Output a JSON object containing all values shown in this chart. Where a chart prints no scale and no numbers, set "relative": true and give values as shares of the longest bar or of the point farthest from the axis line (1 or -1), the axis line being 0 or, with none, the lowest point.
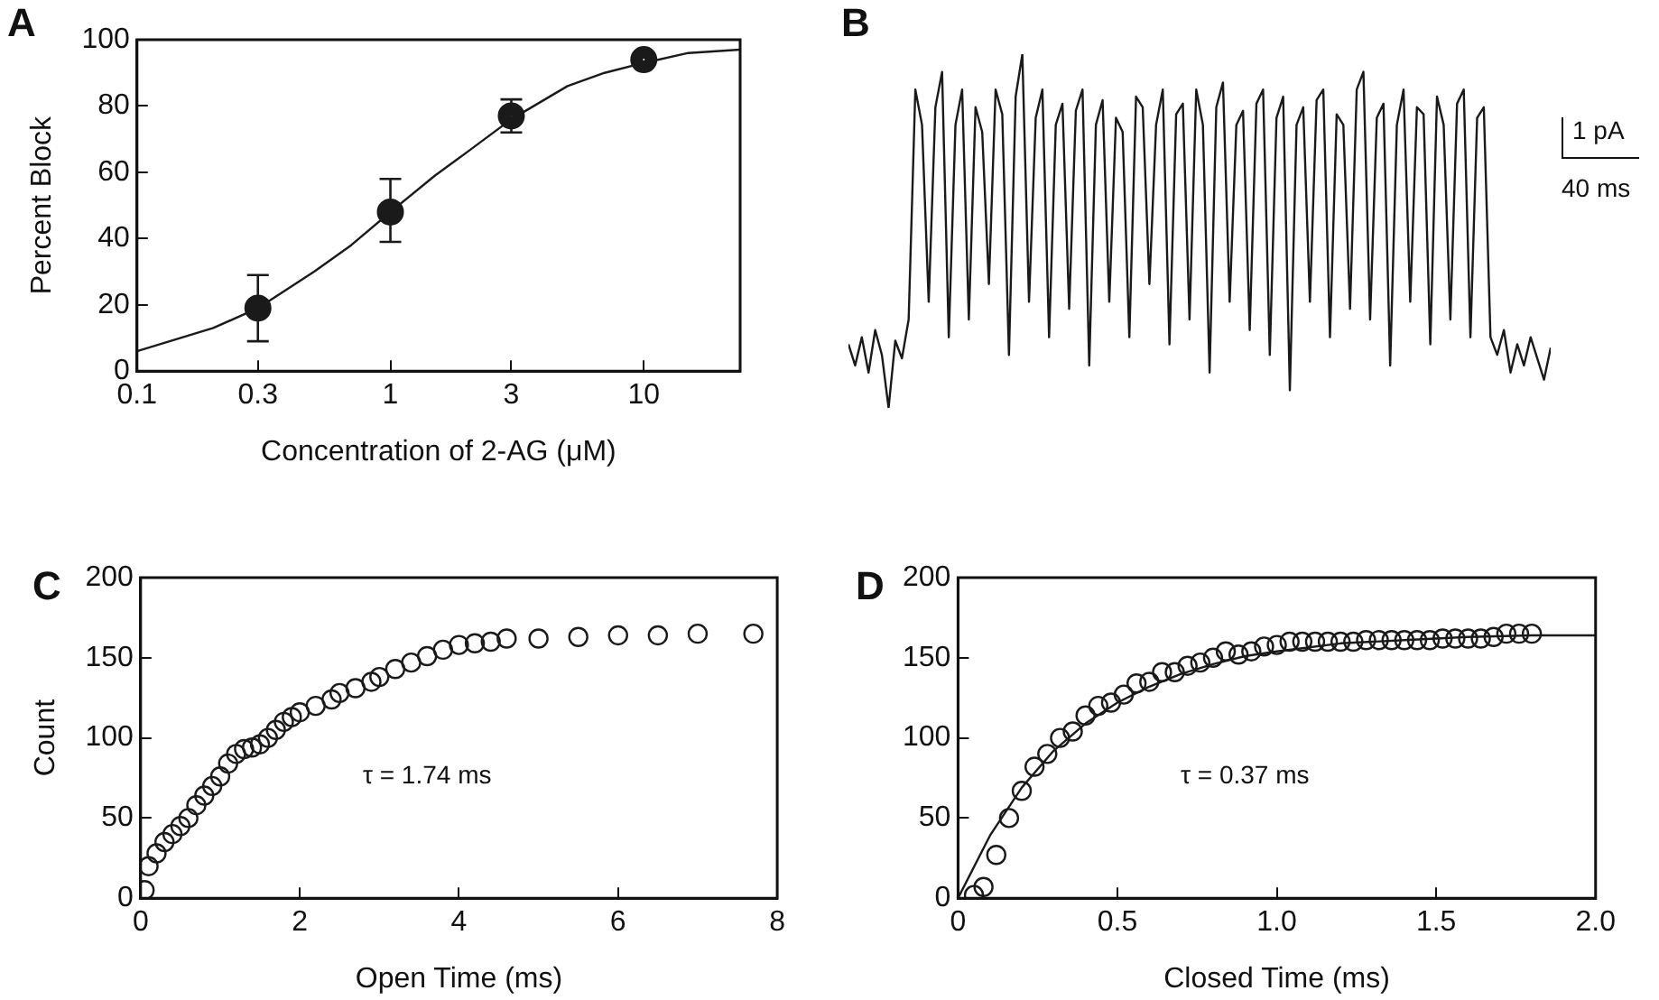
{
  "chart_data": [
    {
      "type": "scatter",
      "title": "A",
      "xlabel": "Concentration of 2-AG (μM)",
      "ylabel": "Percent Block",
      "log": "x",
      "xlim": [
        0.1,
        24
      ],
      "xticks": [
        0.1,
        0.3,
        1,
        3,
        10
      ],
      "ylim": [
        0,
        100
      ],
      "yticks": [
        0,
        20,
        40,
        60,
        80,
        100
      ],
      "grid": false,
      "legend": false,
      "series": [
        {
          "type": "scatter",
          "marker": "circle",
          "color": "#1a1a1a",
          "x": [
            0.3,
            1,
            3,
            10
          ],
          "values": [
            19,
            48,
            77,
            94
          ],
          "errors": [
            10,
            [
              39,
              58
            ],
            5,
            null
          ]
        },
        {
          "type": "line",
          "marker": "none",
          "color": "#1a1a1a",
          "x": [
            0.1,
            0.2,
            0.3,
            0.5,
            0.7,
            1,
            1.5,
            2,
            3,
            5,
            7,
            10,
            15,
            24
          ],
          "values": [
            6,
            13,
            19,
            30,
            38,
            48,
            59,
            66,
            76,
            86,
            90,
            93,
            96,
            97
          ]
        }
      ]
    },
    {
      "type": "line",
      "title": "B",
      "relative": true,
      "legend": false,
      "marker": "none",
      "grid": false,
      "annotations": [
        "1 pA",
        "40 ms"
      ],
      "categories": [
        null,
        null,
        null,
        null,
        null,
        null,
        null,
        null,
        null,
        null,
        null,
        null,
        null,
        null,
        null,
        null,
        null,
        null,
        null,
        null,
        null,
        null,
        null,
        null,
        null,
        null,
        null,
        null,
        null,
        null,
        null,
        null,
        null,
        null,
        null,
        null,
        null,
        null,
        null,
        null,
        null,
        null,
        null,
        null,
        null,
        null,
        null,
        null,
        null,
        null,
        null,
        null,
        null,
        null,
        null,
        null,
        null,
        null,
        null,
        null,
        null,
        null,
        null,
        null,
        null,
        null,
        null,
        null,
        null,
        null,
        null,
        null,
        null,
        null,
        null,
        null,
        null,
        null,
        null,
        null,
        null,
        null,
        null,
        null,
        null,
        null,
        null,
        null,
        null,
        null,
        null,
        null,
        null,
        null,
        null,
        null,
        null,
        null,
        null,
        null,
        null,
        null,
        null,
        null,
        null,
        null
      ],
      "series": [
        {
          "color": "#1a1a1a",
          "values": [
            0.18,
            0.12,
            0.2,
            0.1,
            0.22,
            0.15,
            0.0,
            0.19,
            0.14,
            0.25,
            0.9,
            0.8,
            0.3,
            0.85,
            0.95,
            0.2,
            0.8,
            0.9,
            0.25,
            0.85,
            0.78,
            0.35,
            0.9,
            0.83,
            0.15,
            0.88,
            1.0,
            0.3,
            0.82,
            0.9,
            0.2,
            0.8,
            0.86,
            0.28,
            0.84,
            0.9,
            0.12,
            0.8,
            0.87,
            0.3,
            0.82,
            0.78,
            0.2,
            0.88,
            0.85,
            0.35,
            0.8,
            0.9,
            0.18,
            0.83,
            0.86,
            0.25,
            0.9,
            0.8,
            0.1,
            0.85,
            0.92,
            0.3,
            0.8,
            0.84,
            0.22,
            0.86,
            0.9,
            0.15,
            0.82,
            0.88,
            0.05,
            0.8,
            0.85,
            0.3,
            0.87,
            0.9,
            0.2,
            0.83,
            0.8,
            0.28,
            0.9,
            0.95,
            0.25,
            0.82,
            0.86,
            0.12,
            0.8,
            0.9,
            0.3,
            0.85,
            0.83,
            0.18,
            0.88,
            0.8,
            0.25,
            0.86,
            0.9,
            0.2,
            0.82,
            0.85,
            0.2,
            0.15,
            0.22,
            0.1,
            0.18,
            0.12,
            0.2,
            0.14,
            0.08,
            0.17
          ]
        }
      ]
    },
    {
      "type": "scatter",
      "title": "C",
      "xlabel": "Open Time (ms)",
      "ylabel": "Count",
      "xlim": [
        0,
        8
      ],
      "xticks": [
        0,
        2,
        4,
        6,
        8
      ],
      "ylim": [
        0,
        200
      ],
      "yticks": [
        0,
        50,
        100,
        150,
        200
      ],
      "grid": false,
      "legend": false,
      "marker": "circle",
      "annotations": [
        "τ = 1.74 ms"
      ],
      "series": [
        {
          "type": "scatter",
          "color": "#1a1a1a",
          "x": [
            0.05,
            0.1,
            0.2,
            0.3,
            0.4,
            0.5,
            0.6,
            0.7,
            0.8,
            0.9,
            1.0,
            1.1,
            1.2,
            1.3,
            1.4,
            1.5,
            1.6,
            1.7,
            1.8,
            1.9,
            2.0,
            2.2,
            2.4,
            2.5,
            2.7,
            2.9,
            3.0,
            3.2,
            3.4,
            3.6,
            3.8,
            4.0,
            4.2,
            4.4,
            4.6,
            5.0,
            5.5,
            6.0,
            6.5,
            7.0,
            7.7
          ],
          "values": [
            5,
            20,
            28,
            35,
            40,
            45,
            50,
            58,
            64,
            70,
            76,
            84,
            90,
            93,
            94,
            96,
            100,
            105,
            110,
            113,
            116,
            120,
            124,
            128,
            131,
            135,
            138,
            143,
            147,
            151,
            155,
            158,
            159,
            160,
            162,
            162,
            163,
            164,
            164,
            165,
            165
          ]
        }
      ]
    },
    {
      "type": "scatter",
      "title": "D",
      "xlabel": "Closed Time (ms)",
      "xlim": [
        0,
        2
      ],
      "xticks": [
        0,
        {
          "value": 0.5,
          "label": "0.5"
        },
        {
          "value": 1,
          "label": "1.0"
        },
        {
          "value": 1.5,
          "label": "1.5"
        },
        {
          "value": 2,
          "label": "2.0"
        }
      ],
      "ylim": [
        0,
        200
      ],
      "yticks": [
        0,
        50,
        100,
        150,
        200
      ],
      "grid": false,
      "legend": false,
      "annotations": [
        "τ = 0.37 ms"
      ],
      "series": [
        {
          "type": "scatter",
          "marker": "circle",
          "color": "#1a1a1a",
          "x": [
            0.05,
            0.08,
            0.12,
            0.16,
            0.2,
            0.24,
            0.28,
            0.32,
            0.36,
            0.4,
            0.44,
            0.48,
            0.52,
            0.56,
            0.6,
            0.64,
            0.68,
            0.72,
            0.76,
            0.8,
            0.84,
            0.88,
            0.92,
            0.96,
            1.0,
            1.04,
            1.08,
            1.12,
            1.16,
            1.2,
            1.24,
            1.28,
            1.32,
            1.36,
            1.4,
            1.44,
            1.48,
            1.52,
            1.56,
            1.6,
            1.64,
            1.68,
            1.72,
            1.76,
            1.8
          ],
          "values": [
            2,
            7,
            27,
            50,
            67,
            82,
            90,
            100,
            104,
            114,
            120,
            122,
            127,
            134,
            135,
            141,
            141,
            145,
            147,
            150,
            154,
            152,
            154,
            157,
            158,
            160,
            160,
            160,
            160,
            160,
            160,
            161,
            161,
            161,
            161,
            161,
            161,
            162,
            162,
            162,
            162,
            163,
            165,
            165,
            165
          ]
        },
        {
          "type": "line",
          "marker": "none",
          "color": "#1a1a1a",
          "x": [
            0,
            0.1,
            0.2,
            0.3,
            0.4,
            0.5,
            0.6,
            0.7,
            0.8,
            0.9,
            1.0,
            1.2,
            1.4,
            1.6,
            1.8,
            2.0
          ],
          "values": [
            0,
            39,
            69,
            92,
            109,
            122,
            132,
            140,
            146,
            151,
            154,
            159,
            161,
            163,
            164,
            164
          ]
        }
      ]
    }
  ]
}
